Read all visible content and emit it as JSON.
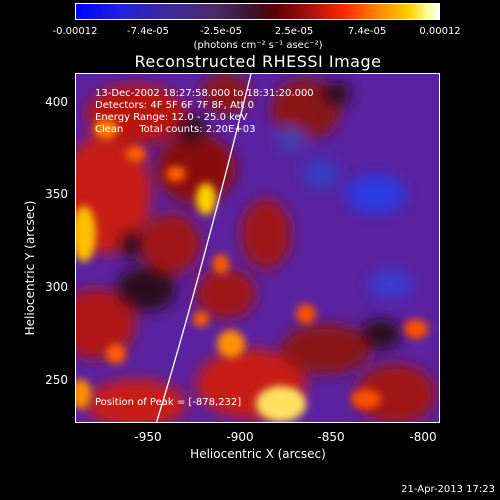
{
  "colorbar": {
    "ticks": [
      "-0.00012",
      "-7.4e-05",
      "-2.5e-05",
      "2.5e-05",
      "7.4e-05",
      "0.00012"
    ],
    "units": "(photons cm⁻² s⁻¹ asec⁻²)"
  },
  "title": "Reconstructed RHESSI Image",
  "annotations": {
    "time_range": "13-Dec-2002 18:27:58.000 to 18:31:20.000",
    "detectors": "Detectors: 4F 5F 6F 7F 8F, Att 0",
    "energy": "Energy Range: 12.0 - 25.0 keV",
    "clean": "Clean     Total counts: 2.20E+03",
    "peak": "Position of Peak = [-878,232]"
  },
  "chart_data": {
    "type": "heatmap",
    "title": "Reconstructed RHESSI Image",
    "xlabel": "Heliocentric X (arcsec)",
    "ylabel": "Heliocentric Y (arcsec)",
    "xlim": [
      -990,
      -795
    ],
    "ylim": [
      222,
      410
    ],
    "xticks": [
      "-950",
      "-900",
      "-850",
      "-800"
    ],
    "xtick_values": [
      -950,
      -900,
      -850,
      -800
    ],
    "yticks": [
      "250",
      "300",
      "350",
      "400"
    ],
    "ytick_values": [
      250,
      300,
      350,
      400
    ],
    "colorbar_range": [
      -0.00012,
      0.00012
    ],
    "peak_position": [
      -878,
      232
    ]
  },
  "footer": {
    "timestamp": "21-Apr-2013 17:23"
  },
  "colors": {
    "background": "#000000",
    "foreground": "#ffffff"
  }
}
